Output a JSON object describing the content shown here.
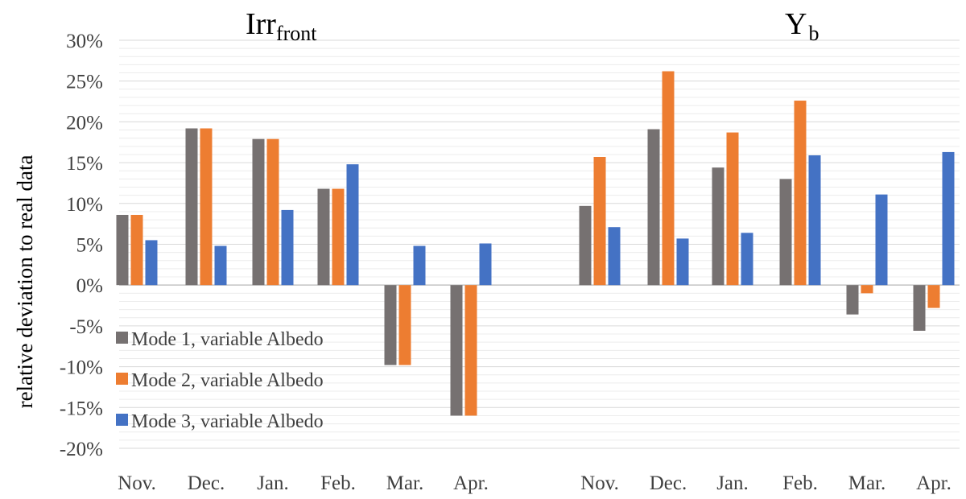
{
  "chart_data": {
    "type": "bar",
    "ylabel": "relative deviation to real data",
    "ylim": [
      -20,
      30
    ],
    "y_tick_step": 5,
    "y_unit": "%",
    "grid": true,
    "legend_position": "lower-left",
    "colors": {
      "Mode 1, variable Albedo": "#767171",
      "Mode 2, variable Albedo": "#ED7D31",
      "Mode 3, variable Albedo": "#4472C4"
    },
    "panels": [
      {
        "title_main": "Irr",
        "title_sub": "front",
        "categories": [
          "Nov.",
          "Dec.",
          "Jan.",
          "Feb.",
          "Mar.",
          "Apr."
        ],
        "series": [
          {
            "name": "Mode 1, variable Albedo",
            "values": [
              8.6,
              19.2,
              17.9,
              11.8,
              -9.8,
              -16.0
            ]
          },
          {
            "name": "Mode 2, variable Albedo",
            "values": [
              8.6,
              19.2,
              17.9,
              11.8,
              -9.8,
              -16.0
            ]
          },
          {
            "name": "Mode 3, variable Albedo",
            "values": [
              5.5,
              4.8,
              9.2,
              14.8,
              4.8,
              5.1
            ]
          }
        ]
      },
      {
        "title_main": "Y",
        "title_sub": "b",
        "categories": [
          "Nov.",
          "Dec.",
          "Jan.",
          "Feb.",
          "Mar.",
          "Apr."
        ],
        "series": [
          {
            "name": "Mode 1, variable Albedo",
            "values": [
              9.7,
              19.1,
              14.4,
              13.0,
              -3.6,
              -5.6
            ]
          },
          {
            "name": "Mode 2, variable Albedo",
            "values": [
              15.7,
              26.2,
              18.7,
              22.6,
              -1.0,
              -2.8
            ]
          },
          {
            "name": "Mode 3, variable Albedo",
            "values": [
              7.1,
              5.7,
              6.4,
              15.9,
              11.1,
              16.3
            ]
          }
        ]
      }
    ],
    "legend": [
      "Mode 1, variable Albedo",
      "Mode 2, variable Albedo",
      "Mode 3, variable Albedo"
    ]
  }
}
